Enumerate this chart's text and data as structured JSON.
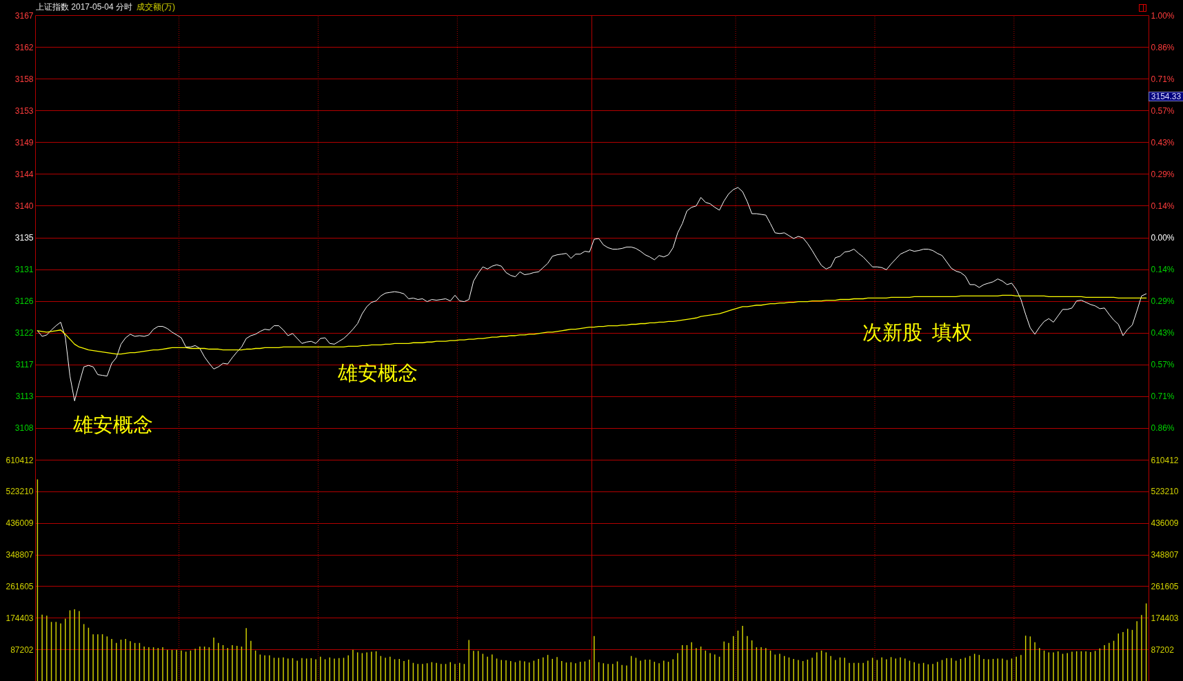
{
  "chart_data": [
    {
      "type": "line",
      "title": "上证指数 2017-05-04 分时",
      "subtitle": "成交额(万)",
      "categories": [
        null,
        null,
        null,
        null,
        null,
        null,
        null,
        null,
        null,
        null,
        null,
        null,
        null,
        null,
        null,
        null,
        null,
        null,
        null,
        null,
        null,
        null,
        null,
        null,
        null,
        null,
        null,
        null,
        null,
        null,
        null,
        null,
        null,
        null,
        null,
        null,
        null,
        null,
        null,
        null,
        null,
        null,
        null,
        null,
        null,
        null,
        null,
        null,
        null,
        null,
        null,
        null,
        null,
        null,
        null,
        null,
        null,
        null,
        null,
        null,
        null,
        null,
        null,
        null,
        null,
        null,
        null,
        null,
        null,
        null,
        null,
        null,
        null,
        null,
        null,
        null,
        null,
        null,
        null,
        null,
        null,
        null,
        null,
        null,
        null,
        null,
        null,
        null,
        null,
        null,
        null,
        null,
        null,
        null,
        null,
        null,
        null,
        null,
        null,
        null,
        null,
        null,
        null,
        null,
        null,
        null,
        null,
        null,
        null,
        null,
        null,
        null,
        null,
        null,
        null,
        null,
        null,
        null,
        null,
        null,
        null,
        null,
        null,
        null,
        null,
        null,
        null,
        null,
        null,
        null,
        null,
        null,
        null,
        null,
        null,
        null,
        null,
        null,
        null,
        null,
        null,
        null,
        null,
        null,
        null,
        null,
        null,
        null,
        null,
        null,
        null,
        null,
        null,
        null,
        null,
        null,
        null,
        null,
        null,
        null,
        null,
        null,
        null,
        null,
        null,
        null,
        null,
        null,
        null,
        null,
        null,
        null,
        null,
        null,
        null,
        null,
        null,
        null,
        null,
        null,
        null,
        null,
        null,
        null,
        null,
        null,
        null,
        null,
        null,
        null,
        null,
        null,
        null,
        null,
        null,
        null,
        null,
        null,
        null,
        null,
        null,
        null,
        null,
        null,
        null,
        null,
        null,
        null,
        null,
        null,
        null,
        null,
        null,
        null,
        null,
        null,
        null,
        null,
        null,
        null,
        null,
        null,
        null,
        null,
        null,
        null,
        null,
        null,
        null,
        null,
        null,
        null,
        null,
        null,
        null,
        null,
        null,
        null,
        null,
        null
      ],
      "series": [
        {
          "color": "#ffffff",
          "values": [
            3122.2,
            3121.4,
            3121.6,
            3122.3,
            3122.9,
            3123.4,
            3121.3,
            3115.8,
            3112.3,
            3114.8,
            3117.1,
            3117.3,
            3117.1,
            3116.0,
            3115.9,
            3115.8,
            3117.6,
            3118.4,
            3120.3,
            3121.2,
            3121.7,
            3121.4,
            3121.5,
            3121.4,
            3121.6,
            3122.4,
            3122.8,
            3122.8,
            3122.5,
            3122.0,
            3121.6,
            3121.2,
            3119.9,
            3119.9,
            3120.1,
            3119.7,
            3118.5,
            3117.6,
            3116.8,
            3117.1,
            3117.6,
            3117.5,
            3118.4,
            3119.2,
            3119.9,
            3121.1,
            3121.5,
            3121.7,
            3122.1,
            3122.4,
            3122.3,
            3122.9,
            3122.9,
            3122.3,
            3121.5,
            3121.8,
            3121.1,
            3120.4,
            3120.6,
            3120.7,
            3120.4,
            3121.1,
            3121.2,
            3120.4,
            3120.3,
            3120.7,
            3121.1,
            3121.7,
            3122.4,
            3123.2,
            3124.6,
            3125.6,
            3126.2,
            3126.4,
            3127.1,
            3127.5,
            3127.6,
            3127.7,
            3127.6,
            3127.4,
            3126.7,
            3126.8,
            3126.6,
            3126.7,
            3126.3,
            3126.6,
            3126.5,
            3126.6,
            3126.7,
            3126.4,
            3127.2,
            3126.4,
            3126.3,
            3126.6,
            3129.2,
            3130.3,
            3131.2,
            3130.9,
            3131.3,
            3131.5,
            3131.3,
            3130.4,
            3130.0,
            3129.8,
            3130.5,
            3130.1,
            3130.2,
            3130.4,
            3130.5,
            3131.1,
            3131.7,
            3132.7,
            3132.9,
            3133.0,
            3133.1,
            3132.4,
            3133.0,
            3133.0,
            3133.4,
            3133.3,
            3135.1,
            3135.2,
            3134.3,
            3133.9,
            3133.7,
            3133.7,
            3133.8,
            3134.0,
            3134.0,
            3133.8,
            3133.4,
            3132.9,
            3132.6,
            3132.2,
            3132.8,
            3132.6,
            3132.9,
            3133.9,
            3136.0,
            3137.3,
            3139.1,
            3139.6,
            3139.8,
            3141.0,
            3140.3,
            3140.1,
            3139.6,
            3139.2,
            3140.5,
            3141.5,
            3142.1,
            3142.4,
            3141.8,
            3140.4,
            3138.7,
            3138.7,
            3138.6,
            3138.5,
            3137.3,
            3136.0,
            3135.9,
            3136.0,
            3135.6,
            3135.2,
            3135.5,
            3135.3,
            3134.5,
            3133.5,
            3132.4,
            3131.4,
            3130.9,
            3131.2,
            3132.5,
            3132.7,
            3133.3,
            3133.4,
            3133.7,
            3133.1,
            3132.6,
            3131.9,
            3131.2,
            3131.2,
            3131.1,
            3130.8,
            3131.6,
            3132.3,
            3133.0,
            3133.3,
            3133.6,
            3133.4,
            3133.5,
            3133.7,
            3133.7,
            3133.5,
            3133.1,
            3132.8,
            3131.9,
            3131.0,
            3130.6,
            3130.4,
            3129.9,
            3128.7,
            3128.7,
            3128.3,
            3128.7,
            3128.9,
            3129.1,
            3129.5,
            3129.2,
            3128.7,
            3128.9,
            3128.0,
            3126.6,
            3124.5,
            3122.6,
            3121.7,
            3122.7,
            3123.5,
            3123.9,
            3123.4,
            3124.3,
            3125.2,
            3125.2,
            3125.4,
            3126.4,
            3126.5,
            3126.2,
            3125.9,
            3125.7,
            3125.3,
            3125.4,
            3124.5,
            3123.7,
            3123.1,
            3121.5,
            3122.4,
            3123.0,
            3125.0,
            3127.1,
            3127.4
          ]
        },
        {
          "color": "#ffff00",
          "values": [
            3122.2,
            3122.1,
            3122.0,
            3122.1,
            3122.2,
            3122.3,
            3121.7,
            3121.0,
            3120.3,
            3119.9,
            3119.7,
            3119.5,
            3119.4,
            3119.3,
            3119.2,
            3119.1,
            3119.0,
            3118.9,
            3118.9,
            3119.0,
            3119.1,
            3119.1,
            3119.2,
            3119.3,
            3119.4,
            3119.5,
            3119.5,
            3119.6,
            3119.7,
            3119.8,
            3119.8,
            3119.8,
            3119.8,
            3119.7,
            3119.7,
            3119.7,
            3119.7,
            3119.6,
            3119.6,
            3119.6,
            3119.5,
            3119.5,
            3119.5,
            3119.5,
            3119.5,
            3119.6,
            3119.6,
            3119.7,
            3119.7,
            3119.8,
            3119.8,
            3119.8,
            3119.8,
            3119.9,
            3119.9,
            3119.9,
            3119.9,
            3119.9,
            3119.9,
            3119.9,
            3119.9,
            3119.9,
            3119.9,
            3119.9,
            3119.9,
            3119.9,
            3119.9,
            3120.0,
            3120.0,
            3120.0,
            3120.1,
            3120.1,
            3120.2,
            3120.2,
            3120.2,
            3120.3,
            3120.3,
            3120.4,
            3120.4,
            3120.4,
            3120.4,
            3120.5,
            3120.5,
            3120.5,
            3120.6,
            3120.6,
            3120.7,
            3120.7,
            3120.7,
            3120.8,
            3120.8,
            3120.9,
            3120.9,
            3121.0,
            3121.0,
            3121.1,
            3121.1,
            3121.2,
            3121.3,
            3121.3,
            3121.4,
            3121.4,
            3121.5,
            3121.5,
            3121.6,
            3121.6,
            3121.7,
            3121.7,
            3121.8,
            3121.9,
            3122.0,
            3122.0,
            3122.1,
            3122.2,
            3122.3,
            3122.4,
            3122.4,
            3122.5,
            3122.6,
            3122.7,
            3122.7,
            3122.8,
            3122.8,
            3122.9,
            3122.9,
            3122.9,
            3123.0,
            3123.0,
            3123.1,
            3123.1,
            3123.2,
            3123.2,
            3123.3,
            3123.3,
            3123.4,
            3123.4,
            3123.5,
            3123.5,
            3123.6,
            3123.7,
            3123.8,
            3123.9,
            3124.0,
            3124.2,
            3124.3,
            3124.4,
            3124.5,
            3124.6,
            3124.8,
            3125.0,
            3125.2,
            3125.4,
            3125.6,
            3125.6,
            3125.7,
            3125.8,
            3125.8,
            3125.9,
            3126.0,
            3126.0,
            3126.1,
            3126.1,
            3126.2,
            3126.2,
            3126.3,
            3126.3,
            3126.3,
            3126.4,
            3126.4,
            3126.4,
            3126.5,
            3126.5,
            3126.5,
            3126.6,
            3126.6,
            3126.6,
            3126.7,
            3126.7,
            3126.7,
            3126.8,
            3126.8,
            3126.8,
            3126.8,
            3126.8,
            3126.9,
            3126.9,
            3126.9,
            3126.9,
            3126.9,
            3127.0,
            3127.0,
            3127.0,
            3127.0,
            3127.0,
            3127.0,
            3127.0,
            3127.0,
            3127.0,
            3127.0,
            3127.1,
            3127.1,
            3127.1,
            3127.1,
            3127.1,
            3127.1,
            3127.1,
            3127.1,
            3127.1,
            3127.2,
            3127.2,
            3127.2,
            3127.1,
            3127.1,
            3127.1,
            3127.1,
            3127.1,
            3127.1,
            3127.1,
            3127.0,
            3127.0,
            3127.0,
            3127.0,
            3127.0,
            3127.0,
            3127.0,
            3127.0,
            3126.9,
            3126.9,
            3126.9,
            3126.9,
            3126.9,
            3126.9,
            3126.9,
            3126.8,
            3126.8,
            3126.8,
            3126.8,
            3126.8,
            3126.8,
            3126.8
          ]
        }
      ],
      "ylim": [
        3104.0,
        3166.7
      ],
      "yticks": [
        {
          "value": 3108.48,
          "label": "3108"
        },
        {
          "value": 3112.95,
          "label": "3113"
        },
        {
          "value": 3117.43,
          "label": "3117"
        },
        {
          "value": 3121.91,
          "label": "3122"
        },
        {
          "value": 3126.39,
          "label": "3126"
        },
        {
          "value": 3130.87,
          "label": "3131"
        },
        {
          "value": 3135.35,
          "label": "3135"
        },
        {
          "value": 3139.83,
          "label": "3140"
        },
        {
          "value": 3144.31,
          "label": "3144"
        },
        {
          "value": 3148.79,
          "label": "3149"
        },
        {
          "value": 3153.27,
          "label": "3153"
        },
        {
          "value": 3157.75,
          "label": "3158"
        },
        {
          "value": 3162.22,
          "label": "3162"
        },
        {
          "value": 3166.7,
          "label": "3167"
        }
      ],
      "y2lim": [
        -1.0,
        1.0
      ],
      "y2ticks": [
        {
          "value": -0.857,
          "label": "0.86%"
        },
        {
          "value": -0.714,
          "label": "0.71%"
        },
        {
          "value": -0.571,
          "label": "0.57%"
        },
        {
          "value": -0.429,
          "label": "0.43%"
        },
        {
          "value": -0.286,
          "label": "0.29%"
        },
        {
          "value": -0.143,
          "label": "0.14%"
        },
        {
          "value": 0,
          "label": "0.00%"
        },
        {
          "value": 0.143,
          "label": "0.14%"
        },
        {
          "value": 0.286,
          "label": "0.29%"
        },
        {
          "value": 0.429,
          "label": "0.43%"
        },
        {
          "value": 0.571,
          "label": "0.57%"
        },
        {
          "value": 0.714,
          "label": "0.71%"
        },
        {
          "value": 0.857,
          "label": "0.86%"
        },
        {
          "value": 1.0,
          "label": "1.00%"
        }
      ],
      "grid": true,
      "annotations": [
        "雄安概念",
        "雄安概念",
        "次新股  填权",
        "3154.33"
      ]
    },
    {
      "type": "bar",
      "categories": [
        null,
        null,
        null,
        null,
        null,
        null,
        null,
        null,
        null,
        null,
        null,
        null,
        null,
        null,
        null,
        null,
        null,
        null,
        null,
        null,
        null,
        null,
        null,
        null,
        null,
        null,
        null,
        null,
        null,
        null,
        null,
        null,
        null,
        null,
        null,
        null,
        null,
        null,
        null,
        null,
        null,
        null,
        null,
        null,
        null,
        null,
        null,
        null,
        null,
        null,
        null,
        null,
        null,
        null,
        null,
        null,
        null,
        null,
        null,
        null,
        null,
        null,
        null,
        null,
        null,
        null,
        null,
        null,
        null,
        null,
        null,
        null,
        null,
        null,
        null,
        null,
        null,
        null,
        null,
        null,
        null,
        null,
        null,
        null,
        null,
        null,
        null,
        null,
        null,
        null,
        null,
        null,
        null,
        null,
        null,
        null,
        null,
        null,
        null,
        null,
        null,
        null,
        null,
        null,
        null,
        null,
        null,
        null,
        null,
        null,
        null,
        null,
        null,
        null,
        null,
        null,
        null,
        null,
        null,
        null,
        null,
        null,
        null,
        null,
        null,
        null,
        null,
        null,
        null,
        null,
        null,
        null,
        null,
        null,
        null,
        null,
        null,
        null,
        null,
        null,
        null,
        null,
        null,
        null,
        null,
        null,
        null,
        null,
        null,
        null,
        null,
        null,
        null,
        null,
        null,
        null,
        null,
        null,
        null,
        null,
        null,
        null,
        null,
        null,
        null,
        null,
        null,
        null,
        null,
        null,
        null,
        null,
        null,
        null,
        null,
        null,
        null,
        null,
        null,
        null,
        null,
        null,
        null,
        null,
        null,
        null,
        null,
        null,
        null,
        null,
        null,
        null,
        null,
        null,
        null,
        null,
        null,
        null,
        null,
        null,
        null,
        null,
        null,
        null,
        null,
        null,
        null,
        null,
        null,
        null,
        null,
        null,
        null,
        null,
        null,
        null,
        null,
        null,
        null,
        null,
        null,
        null,
        null,
        null,
        null,
        null,
        null,
        null,
        null,
        null,
        null,
        null,
        null,
        null,
        null,
        null,
        null,
        null,
        null,
        null
      ],
      "values": [
        556000,
        183000,
        180000,
        163000,
        163000,
        159000,
        172000,
        195000,
        198000,
        193000,
        157000,
        147000,
        129000,
        129000,
        129000,
        123000,
        116000,
        105000,
        114000,
        116000,
        110000,
        105000,
        105000,
        95000,
        93000,
        93000,
        91000,
        93000,
        86000,
        86000,
        86000,
        84000,
        81000,
        84000,
        89000,
        95000,
        95000,
        93000,
        120000,
        105000,
        99000,
        91000,
        99000,
        97000,
        95000,
        146000,
        111000,
        84000,
        73000,
        71000,
        71000,
        64000,
        64000,
        65000,
        62000,
        63000,
        56000,
        63000,
        62000,
        63000,
        60000,
        67000,
        60000,
        65000,
        62000,
        63000,
        64000,
        71000,
        86000,
        79000,
        77000,
        79000,
        81000,
        82000,
        69000,
        64000,
        67000,
        60000,
        61000,
        55000,
        59000,
        50000,
        47000,
        47000,
        49000,
        52000,
        50000,
        47000,
        47000,
        52000,
        47000,
        50000,
        47000,
        113000,
        83000,
        83000,
        75000,
        67000,
        73000,
        62000,
        58000,
        57000,
        55000,
        52000,
        56000,
        54000,
        51000,
        56000,
        61000,
        65000,
        72000,
        61000,
        66000,
        55000,
        51000,
        52000,
        49000,
        53000,
        54000,
        59000,
        124000,
        52000,
        49000,
        47000,
        47000,
        54000,
        44000,
        43000,
        69000,
        64000,
        56000,
        59000,
        59000,
        53000,
        49000,
        56000,
        53000,
        60000,
        77000,
        99000,
        99000,
        107000,
        91000,
        95000,
        84000,
        77000,
        73000,
        67000,
        109000,
        105000,
        124000,
        139000,
        152000,
        124000,
        112000,
        93000,
        93000,
        91000,
        84000,
        73000,
        75000,
        69000,
        65000,
        61000,
        58000,
        55000,
        59000,
        64000,
        79000,
        84000,
        79000,
        69000,
        58000,
        65000,
        64000,
        50000,
        50000,
        50000,
        50000,
        56000,
        64000,
        58000,
        65000,
        60000,
        66000,
        62000,
        65000,
        62000,
        56000,
        52000,
        48000,
        50000,
        46000,
        47000,
        53000,
        58000,
        63000,
        63000,
        56000,
        61000,
        64000,
        69000,
        75000,
        72000,
        61000,
        60000,
        61000,
        62000,
        62000,
        58000,
        62000,
        67000,
        72000,
        125000,
        123000,
        107000,
        91000,
        84000,
        79000,
        79000,
        82000,
        75000,
        77000,
        81000,
        82000,
        82000,
        82000,
        80000,
        83000,
        90000,
        99000,
        105000,
        111000,
        131000,
        135000,
        144000,
        141000,
        165000,
        182000,
        214000
      ],
      "color": "#d2d200",
      "ylim": [
        0,
        610412
      ],
      "yticks": [
        87202,
        174403,
        261605,
        348807,
        436009,
        523210,
        610412
      ],
      "y2lim": [
        0,
        610412
      ],
      "y2ticks": [
        87202,
        174403,
        261605,
        348807,
        436009,
        523210,
        610412
      ],
      "grid": true
    }
  ]
}
